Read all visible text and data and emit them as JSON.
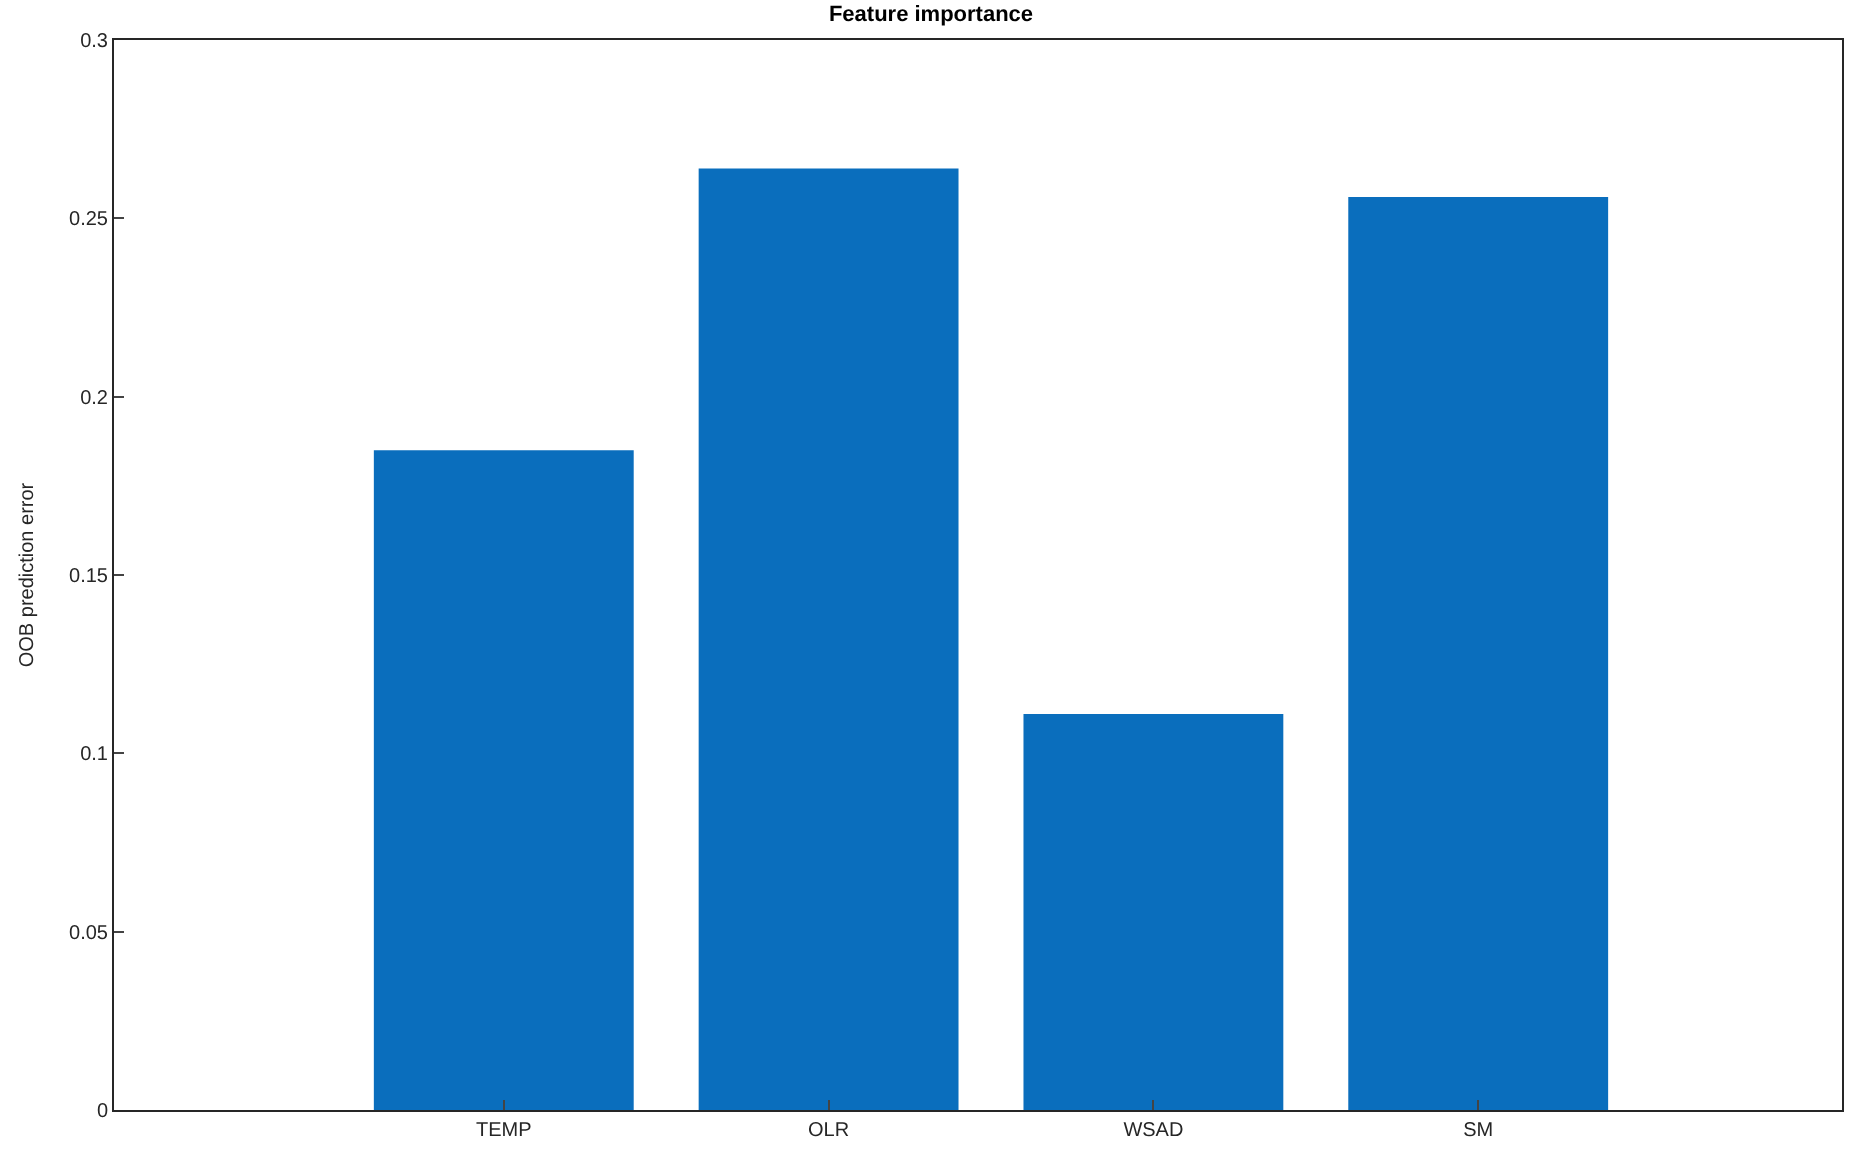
{
  "chart_data": {
    "type": "bar",
    "title": "Feature importance",
    "ylabel": "OOB prediction error",
    "categories": [
      "TEMP",
      "OLR",
      "WSAD",
      "SM"
    ],
    "values": [
      0.185,
      0.264,
      0.111,
      0.256
    ],
    "color": "#0a6ebd",
    "ylim": [
      0,
      0.3
    ],
    "yticks": [
      0,
      0.05,
      0.1,
      0.15,
      0.2,
      0.25,
      0.3
    ]
  }
}
